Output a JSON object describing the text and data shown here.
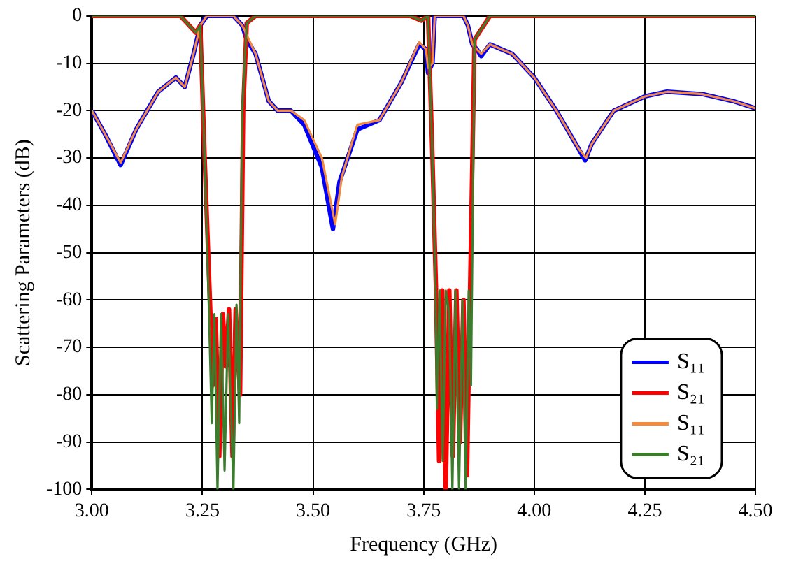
{
  "chart_data": {
    "type": "line",
    "xlabel": "Frequency (GHz)",
    "ylabel": "Scattering Parameters (dB)",
    "xlim": [
      3.0,
      4.5
    ],
    "xticks": [
      {
        "value": 3.0,
        "label": "3.00"
      },
      {
        "value": 3.25,
        "label": "3.25"
      },
      {
        "value": 3.5,
        "label": "3.50"
      },
      {
        "value": 3.75,
        "label": "3.75"
      },
      {
        "value": 4.0,
        "label": "4.00"
      },
      {
        "value": 4.25,
        "label": "4.25"
      },
      {
        "value": 4.5,
        "label": "4.50"
      }
    ],
    "ylim": [
      -100,
      0
    ],
    "yticks": [
      -100,
      -90,
      -80,
      -70,
      -60,
      -50,
      -40,
      -30,
      -20,
      -10,
      0
    ],
    "grid": true,
    "legend": "bottom right",
    "marker": "none",
    "line_style": "solid",
    "series": [
      {
        "name": "S₁₁",
        "color": "#0000ff",
        "x": [
          3.0,
          3.03,
          3.065,
          3.1,
          3.15,
          3.19,
          3.21,
          3.23,
          3.245,
          3.26,
          3.32,
          3.34,
          3.35,
          3.37,
          3.4,
          3.42,
          3.45,
          3.48,
          3.52,
          3.545,
          3.56,
          3.6,
          3.65,
          3.7,
          3.74,
          3.755,
          3.76,
          3.77,
          3.775,
          3.84,
          3.85,
          3.86,
          3.87,
          3.88,
          3.9,
          3.95,
          4.0,
          4.05,
          4.1,
          4.115,
          4.13,
          4.18,
          4.25,
          4.3,
          4.38,
          4.45,
          4.5
        ],
        "values": [
          -20,
          -25,
          -31.5,
          -24,
          -16,
          -13,
          -15,
          -8,
          -2,
          0,
          0,
          -2,
          -5,
          -8,
          -18,
          -20,
          -20,
          -23,
          -32,
          -45,
          -35,
          -24,
          -22,
          -14,
          -6,
          -7,
          -12,
          -10,
          0,
          0,
          -2,
          -6,
          -7,
          -8.5,
          -6,
          -8,
          -13,
          -20,
          -28,
          -30.5,
          -27,
          -20,
          -17,
          -16,
          -16.5,
          -18,
          -19.5
        ]
      },
      {
        "name": "S₂₁",
        "color": "#ff0000",
        "x": [
          3.0,
          3.2,
          3.22,
          3.235,
          3.245,
          3.255,
          3.268,
          3.273,
          3.28,
          3.288,
          3.296,
          3.303,
          3.31,
          3.318,
          3.325,
          3.335,
          3.342,
          3.35,
          3.37,
          3.72,
          3.745,
          3.76,
          3.77,
          3.778,
          3.785,
          3.792,
          3.8,
          3.808,
          3.816,
          3.824,
          3.832,
          3.84,
          3.848,
          3.855,
          3.865,
          3.9,
          4.5
        ],
        "values": [
          0,
          0,
          -2,
          -3.5,
          -2,
          -30,
          -63,
          -78,
          -64,
          -93,
          -63,
          -74,
          -62,
          -93,
          -62,
          -80,
          -20,
          -1.5,
          0,
          0,
          -1,
          0,
          -30,
          -58,
          -94,
          -58,
          -100,
          -58,
          -93,
          -58,
          -90,
          -60,
          -97,
          -58,
          -5,
          0,
          0
        ]
      },
      {
        "name": "S₁₁",
        "color": "#f58a3c",
        "x": [
          3.0,
          3.03,
          3.065,
          3.1,
          3.15,
          3.19,
          3.21,
          3.23,
          3.245,
          3.26,
          3.32,
          3.34,
          3.35,
          3.37,
          3.4,
          3.42,
          3.45,
          3.48,
          3.52,
          3.55,
          3.565,
          3.6,
          3.65,
          3.7,
          3.74,
          3.755,
          3.76,
          3.77,
          3.775,
          3.84,
          3.85,
          3.86,
          3.87,
          3.88,
          3.9,
          3.95,
          4.0,
          4.05,
          4.1,
          4.117,
          4.13,
          4.18,
          4.25,
          4.3,
          4.38,
          4.45,
          4.5
        ],
        "values": [
          -20,
          -25,
          -31,
          -24,
          -16,
          -13,
          -15,
          -8,
          -2,
          0,
          0,
          -2,
          -4,
          -8,
          -18,
          -20,
          -20,
          -22,
          -30,
          -44,
          -34,
          -23,
          -22,
          -14,
          -5.5,
          -7,
          -11,
          -10,
          0,
          0,
          -2,
          -6,
          -7,
          -8,
          -6,
          -8,
          -13,
          -20,
          -28,
          -30,
          -27,
          -20,
          -17,
          -16,
          -16.5,
          -18,
          -19.5
        ]
      },
      {
        "name": "S₂₁",
        "color": "#3a7d2c",
        "x": [
          3.0,
          3.2,
          3.22,
          3.235,
          3.245,
          3.255,
          3.265,
          3.271,
          3.277,
          3.284,
          3.292,
          3.3,
          3.308,
          3.32,
          3.327,
          3.333,
          3.34,
          3.35,
          3.37,
          3.72,
          3.745,
          3.76,
          3.77,
          3.777,
          3.78,
          3.786,
          3.793,
          3.8,
          3.808,
          3.815,
          3.822,
          3.83,
          3.838,
          3.845,
          3.852,
          3.857,
          3.865,
          3.9,
          4.5
        ],
        "values": [
          0,
          0,
          -2,
          -3.5,
          -2,
          -30,
          -63,
          -86,
          -63,
          -100,
          -63,
          -96,
          -63,
          -100,
          -61,
          -86,
          -20,
          -1.5,
          0,
          0,
          -1,
          0,
          -30,
          -58,
          -83,
          -58,
          -94,
          -58,
          -63,
          -100,
          -58,
          -100,
          -60,
          -100,
          -58,
          -78,
          -5,
          0,
          0
        ]
      }
    ]
  }
}
